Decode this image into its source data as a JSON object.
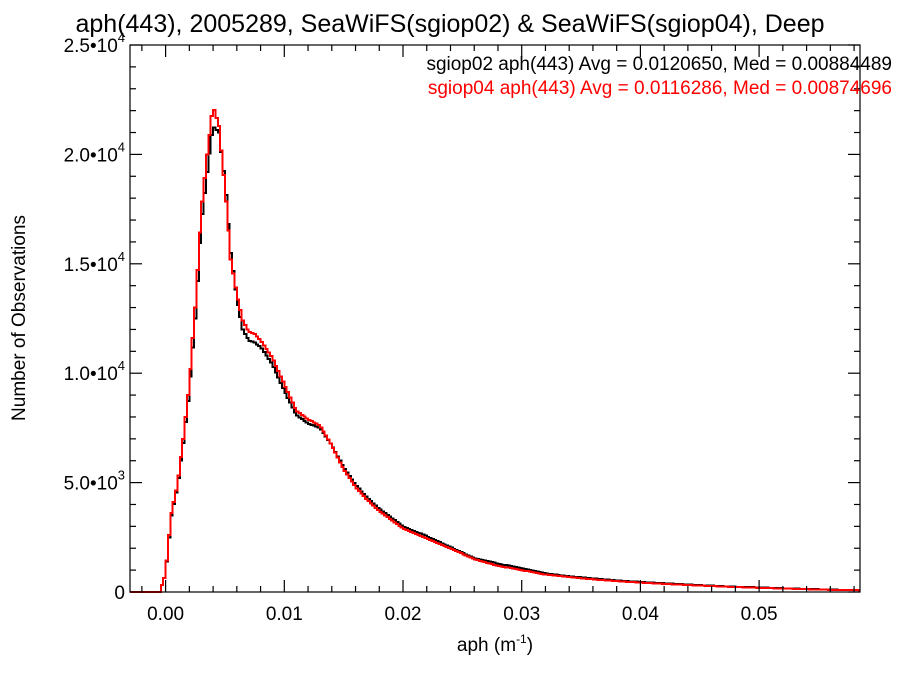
{
  "chart_data": {
    "type": "line",
    "step": true,
    "title": "aph(443), 2005289, SeaWiFS(sgiop02) & SeaWiFS(sgiop04), Deep",
    "xlabel": "aph (m",
    "xlabel_sup": "-1",
    "xlabel_end": ")",
    "ylabel": "Number of Observations",
    "xlim": [
      -0.003,
      0.0585
    ],
    "ylim": [
      0,
      25000
    ],
    "xticks": [
      0.0,
      0.01,
      0.02,
      0.03,
      0.04,
      0.05
    ],
    "xtick_labels": [
      "0.00",
      "0.01",
      "0.02",
      "0.03",
      "0.04",
      "0.05"
    ],
    "yticks": [
      0,
      5000,
      10000,
      15000,
      20000,
      25000
    ],
    "ytick_labels": [
      {
        "main": "0",
        "exp": ""
      },
      {
        "main": "5.0•10",
        "exp": "3"
      },
      {
        "main": "1.0•10",
        "exp": "4"
      },
      {
        "main": "1.5•10",
        "exp": "4"
      },
      {
        "main": "2.0•10",
        "exp": "4"
      },
      {
        "main": "2.5•10",
        "exp": "4"
      }
    ],
    "legend": [
      {
        "text": "sgiop02 aph(443) Avg = 0.0120650, Med = 0.00884489",
        "color": "#000000"
      },
      {
        "text": "sgiop04 aph(443) Avg = 0.0116286, Med = 0.00874696",
        "color": "#ff0000"
      }
    ],
    "legend_position": "top-right",
    "bin_width": 0.0002,
    "series": [
      {
        "name": "sgiop02",
        "color": "#000000",
        "x": [
          -0.003,
          -0.0005,
          0,
          0.0002,
          0.0005,
          0.001,
          0.0015,
          0.002,
          0.0025,
          0.003,
          0.0035,
          0.004,
          0.0045,
          0.005,
          0.0055,
          0.006,
          0.0065,
          0.007,
          0.0075,
          0.008,
          0.009,
          0.01,
          0.011,
          0.012,
          0.013,
          0.014,
          0.015,
          0.016,
          0.017,
          0.018,
          0.019,
          0.02,
          0.022,
          0.024,
          0.026,
          0.028,
          0.03,
          0.032,
          0.034,
          0.036,
          0.038,
          0.04,
          0.042,
          0.044,
          0.046,
          0.048,
          0.05,
          0.052,
          0.054,
          0.056,
          0.0585
        ],
        "y": [
          0,
          0,
          800,
          2000,
          3500,
          4800,
          6800,
          9200,
          12500,
          16800,
          19200,
          21300,
          21000,
          18800,
          15500,
          13400,
          12000,
          11500,
          11400,
          11200,
          10400,
          9200,
          8100,
          7700,
          7500,
          6700,
          5700,
          4900,
          4300,
          3800,
          3400,
          3000,
          2550,
          2050,
          1550,
          1300,
          1080,
          850,
          720,
          620,
          530,
          460,
          400,
          340,
          290,
          240,
          210,
          170,
          140,
          110,
          80
        ]
      },
      {
        "name": "sgiop04",
        "color": "#ff0000",
        "x": [
          -0.003,
          -0.0005,
          0,
          0.0002,
          0.0005,
          0.001,
          0.0015,
          0.002,
          0.0025,
          0.003,
          0.0035,
          0.004,
          0.0045,
          0.005,
          0.0055,
          0.006,
          0.0065,
          0.007,
          0.0075,
          0.008,
          0.009,
          0.01,
          0.011,
          0.012,
          0.013,
          0.014,
          0.015,
          0.016,
          0.017,
          0.018,
          0.019,
          0.02,
          0.022,
          0.024,
          0.026,
          0.028,
          0.03,
          0.032,
          0.034,
          0.036,
          0.038,
          0.04,
          0.042,
          0.044,
          0.046,
          0.048,
          0.05,
          0.052,
          0.054,
          0.056,
          0.0585
        ],
        "y": [
          0,
          0,
          800,
          2100,
          3600,
          4900,
          7000,
          9500,
          13000,
          17300,
          20000,
          22200,
          21300,
          18500,
          15200,
          13600,
          12400,
          11900,
          11800,
          11500,
          10700,
          9500,
          8300,
          7900,
          7600,
          6700,
          5600,
          4800,
          4200,
          3700,
          3300,
          2900,
          2450,
          2000,
          1500,
          1200,
          1000,
          800,
          680,
          580,
          500,
          430,
          370,
          320,
          270,
          230,
          190,
          160,
          130,
          100,
          80
        ]
      }
    ]
  }
}
